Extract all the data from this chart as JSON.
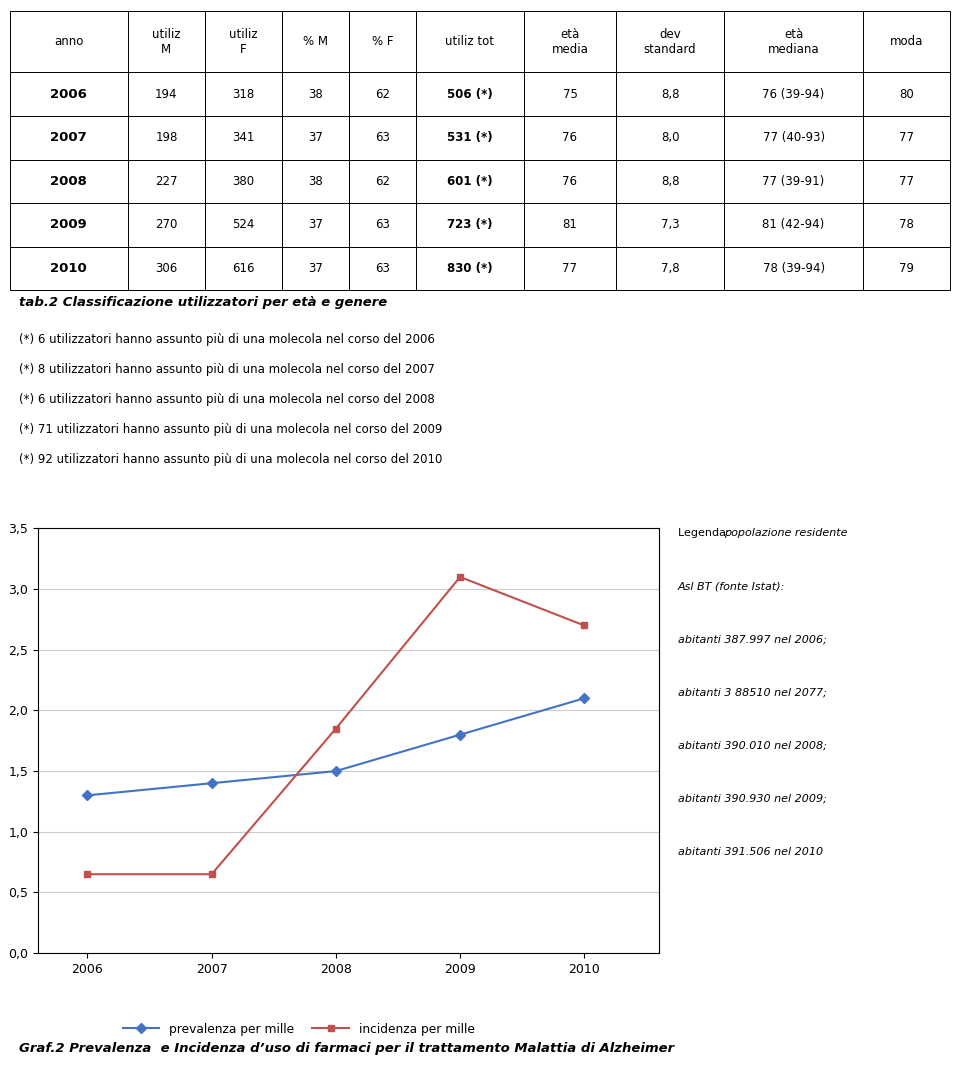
{
  "table_headers": [
    "anno",
    "utiliz\nM",
    "utiliz\nF",
    "% M",
    "% F",
    "utiliz tot",
    "età\nmedia",
    "dev\nstandard",
    "età\nmediana",
    "moda"
  ],
  "table_rows": [
    [
      "2006",
      "194",
      "318",
      "38",
      "62",
      "506 (*)",
      "75",
      "8,8",
      "76 (39-94)",
      "80"
    ],
    [
      "2007",
      "198",
      "341",
      "37",
      "63",
      "531 (*)",
      "76",
      "8,0",
      "77 (40-93)",
      "77"
    ],
    [
      "2008",
      "227",
      "380",
      "38",
      "62",
      "601 (*)",
      "76",
      "8,8",
      "77 (39-91)",
      "77"
    ],
    [
      "2009",
      "270",
      "524",
      "37",
      "63",
      "723 (*)",
      "81",
      "7,3",
      "81 (42-94)",
      "78"
    ],
    [
      "2010",
      "306",
      "616",
      "37",
      "63",
      "830 (*)",
      "77",
      "7,8",
      "78 (39-94)",
      "79"
    ]
  ],
  "col_widths_norm": [
    0.115,
    0.075,
    0.075,
    0.065,
    0.065,
    0.105,
    0.09,
    0.105,
    0.135,
    0.085
  ],
  "tab_title": "tab.2 Classificazione utilizzatori per età e genere",
  "tab_notes": [
    "(*) 6 utilizzatori hanno assunto più di una molecola nel corso del 2006",
    "(*) 8 utilizzatori hanno assunto più di una molecola nel corso del 2007",
    "(*) 6 utilizzatori hanno assunto più di una molecola nel corso del 2008",
    "(*) 71 utilizzatori hanno assunto più di una molecola nel corso del 2009",
    "(*) 92 utilizzatori hanno assunto più di una molecola nel corso del 2010"
  ],
  "years": [
    2006,
    2007,
    2008,
    2009,
    2010
  ],
  "prevalenza": [
    1.3,
    1.4,
    1.5,
    1.8,
    2.1
  ],
  "incidenza": [
    0.65,
    0.65,
    1.85,
    3.1,
    2.7
  ],
  "ylim": [
    0.0,
    3.5
  ],
  "yticks": [
    0.0,
    0.5,
    1.0,
    1.5,
    2.0,
    2.5,
    3.0,
    3.5
  ],
  "ytick_labels": [
    "0,0",
    "0,5",
    "1,0",
    "1,5",
    "2,0",
    "2,5",
    "3,0",
    "3,5"
  ],
  "prevalenza_color": "#4472C4",
  "incidenza_color": "#C0504D",
  "legend_lines": [
    [
      "normal",
      "Legenda: ",
      "italic",
      "popolazione residente"
    ],
    [
      "italic",
      "Asl BT (fonte Istat):"
    ],
    [
      "italic",
      "abitanti 387.997 nel 2006;"
    ],
    [
      "italic",
      "abitanti 3 88510 nel 2077;"
    ],
    [
      "italic",
      "abitanti 390.010 nel 2008;"
    ],
    [
      "italic",
      "abitanti 390.930 nel 2009;"
    ],
    [
      "italic",
      "abitanti 391.506 nel 2010"
    ]
  ],
  "graf_title": "Graf.2 Prevalenza  e Incidenza d’uso di farmaci per il trattamento Malattia di Alzheimer",
  "legend_label_prev": "prevalenza per mille",
  "legend_label_inc": "incidenza per mille",
  "header_bg": "#ffffff",
  "row_bg": "#ffffff",
  "border_color": "#000000"
}
